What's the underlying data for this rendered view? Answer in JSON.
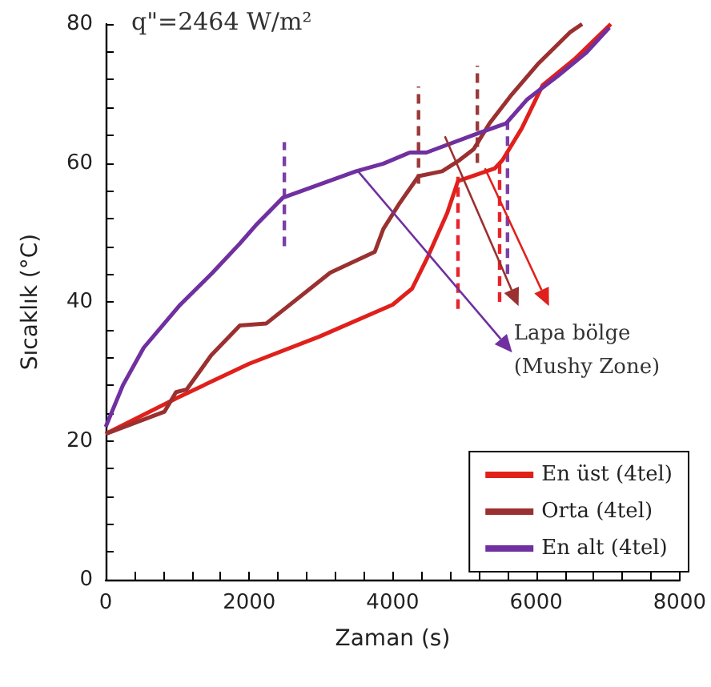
{
  "chart_data": {
    "type": "line",
    "xlabel": "Zaman (s)",
    "ylabel": "Sıcaklık (°C)",
    "annotations": [
      "q\"=2464 W/m²",
      {
        "text": "Lapa bölge\n(Mushy Zone)",
        "x": 3500,
        "y": 59
      }
    ],
    "xlim": [
      0,
      8000
    ],
    "ylim": [
      0,
      80
    ],
    "xticks": [
      0,
      {
        "value": 400,
        "label": null
      },
      {
        "value": 800,
        "label": null
      },
      {
        "value": 1200,
        "label": null
      },
      {
        "value": 1600,
        "label": null
      },
      2000,
      {
        "value": 2400,
        "label": null
      },
      {
        "value": 2800,
        "label": null
      },
      {
        "value": 3200,
        "label": null
      },
      {
        "value": 3600,
        "label": null
      },
      4000,
      {
        "value": 4400,
        "label": null
      },
      {
        "value": 4800,
        "label": null
      },
      {
        "value": 5200,
        "label": null
      },
      {
        "value": 5600,
        "label": null
      },
      6000,
      {
        "value": 6400,
        "label": null
      },
      {
        "value": 6800,
        "label": null
      },
      {
        "value": 7200,
        "label": null
      },
      {
        "value": 7600,
        "label": null
      },
      8000
    ],
    "yticks": [
      0,
      {
        "value": 4,
        "label": null
      },
      {
        "value": 8,
        "label": null
      },
      {
        "value": 12,
        "label": null
      },
      {
        "value": 16,
        "label": null
      },
      20,
      {
        "value": 24,
        "label": null
      },
      {
        "value": 28,
        "label": null
      },
      {
        "value": 32,
        "label": null
      },
      {
        "value": 36,
        "label": null
      },
      40,
      {
        "value": 44,
        "label": null
      },
      {
        "value": 48,
        "label": null
      },
      {
        "value": 52,
        "label": null
      },
      {
        "value": 56,
        "label": null
      },
      60,
      {
        "value": 64,
        "label": null
      },
      {
        "value": 68,
        "label": null
      },
      {
        "value": 72,
        "label": null
      },
      {
        "value": 76,
        "label": null
      },
      80
    ],
    "grid": false,
    "legend": "bottom right",
    "marker": "none",
    "line_style": "solid",
    "series": [
      {
        "name": "En üst (4tel)",
        "color": "#e0201b",
        "x": [
          0,
          1000,
          2000,
          2978,
          4000,
          4270,
          4490,
          4760,
          4910,
          5420,
          5530,
          5800,
          6090,
          6530,
          7040
        ],
        "values": [
          21,
          26.2,
          31.1,
          35,
          39.6,
          41.9,
          46.5,
          52.8,
          57.4,
          59.2,
          60.4,
          65,
          71.2,
          74.9,
          80
        ]
      },
      {
        "name": "Orta (4tel)",
        "color": "#9b3030",
        "x": [
          0,
          820,
          980,
          1130,
          1470,
          1870,
          2240,
          3130,
          3710,
          3750,
          3870,
          4090,
          4360,
          4690,
          4930,
          5130,
          5350,
          5640,
          6020,
          6470,
          6640
        ],
        "values": [
          21,
          24.2,
          27,
          27.4,
          32.3,
          36.6,
          36.9,
          44.2,
          47,
          47.2,
          50.5,
          54.1,
          58.1,
          58.8,
          60.4,
          62,
          65.7,
          69.6,
          74.2,
          78.8,
          80
        ]
      },
      {
        "name": "En alt (4tel)",
        "color": "#7030a0",
        "x": [
          0,
          240,
          530,
          1040,
          1490,
          1870,
          2090,
          2470,
          2980,
          3490,
          3870,
          4240,
          4470,
          5200,
          5580,
          5870,
          6310,
          6690,
          7020
        ],
        "values": [
          22,
          28,
          33.4,
          39.6,
          44.2,
          48.4,
          51,
          55,
          56.9,
          58.8,
          59.9,
          61.5,
          61.5,
          64.3,
          65.7,
          69.1,
          72.6,
          75.8,
          79.5
        ]
      },
      {
        "color": "#7b3fa8",
        "line_style": "dashed",
        "x": [
          2490,
          2490
        ],
        "values": [
          48,
          63
        ]
      },
      {
        "color": "#9b3a3a",
        "line_style": "dashed",
        "x": [
          4360,
          4360
        ],
        "values": [
          57,
          71
        ]
      },
      {
        "color": "#9b3a3a",
        "line_style": "dashed",
        "x": [
          5180,
          5180
        ],
        "values": [
          60,
          74
        ]
      },
      {
        "color": "#e8242a",
        "line_style": "dashed",
        "x": [
          4910,
          4910
        ],
        "values": [
          39,
          58
        ]
      },
      {
        "color": "#e8242a",
        "line_style": "dashed",
        "x": [
          5490,
          5490
        ],
        "values": [
          40,
          60
        ]
      },
      {
        "color": "#7b3fa8",
        "line_style": "dashed",
        "x": [
          5600,
          5600
        ],
        "values": [
          44,
          66
        ]
      }
    ]
  }
}
